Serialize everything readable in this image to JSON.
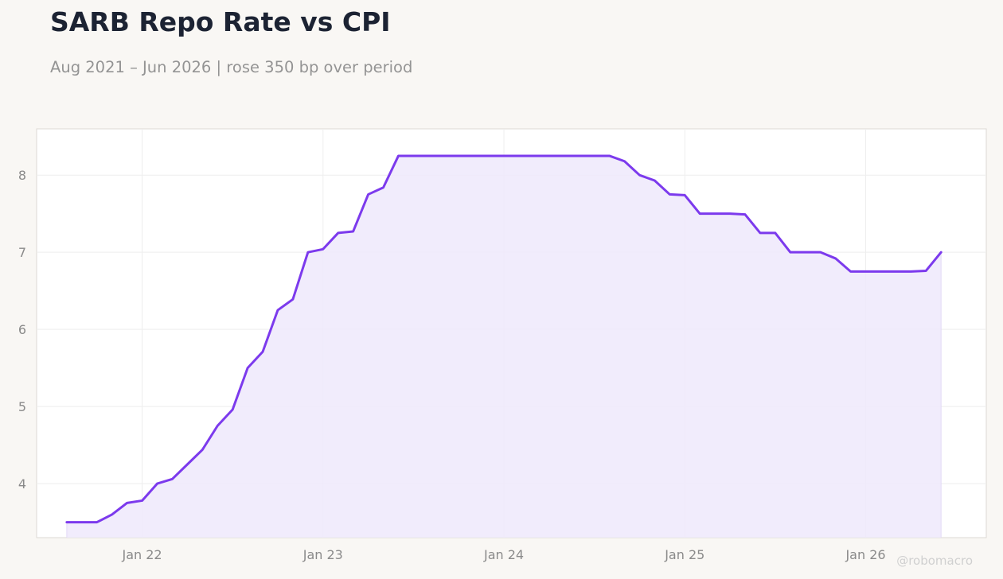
{
  "title": "SARB Repo Rate vs CPI",
  "subtitle": "Aug 2021 – Jun 2026 | rose 350 bp over period",
  "watermark": "@robomacro",
  "colors": {
    "line": "#7c3aed",
    "fill": "#efe9fb",
    "background": "#f9f7f4",
    "plot_background": "#ffffff",
    "grid": "#eeeeee"
  },
  "chart_data": {
    "type": "area",
    "title": "SARB Repo Rate vs CPI",
    "subtitle": "Aug 2021 – Jun 2026 | rose 350 bp over period",
    "xlabel": "",
    "ylabel": "",
    "ylim": [
      3.3,
      8.6
    ],
    "xlim": [
      "2021-06",
      "2026-09"
    ],
    "grid": true,
    "x_ticks": [
      {
        "date": "2022-01",
        "label": "Jan 22"
      },
      {
        "date": "2023-01",
        "label": "Jan 23"
      },
      {
        "date": "2024-01",
        "label": "Jan 24"
      },
      {
        "date": "2025-01",
        "label": "Jan 25"
      },
      {
        "date": "2026-01",
        "label": "Jan 26"
      }
    ],
    "y_ticks": [
      4,
      5,
      6,
      7,
      8
    ],
    "series": [
      {
        "x": [
          "2021-08",
          "2021-09",
          "2021-10",
          "2021-11",
          "2021-12",
          "2022-01",
          "2022-02",
          "2022-03",
          "2022-04",
          "2022-05",
          "2022-06",
          "2022-07",
          "2022-08",
          "2022-09",
          "2022-10",
          "2022-11",
          "2022-12",
          "2023-01",
          "2023-02",
          "2023-03",
          "2023-04",
          "2023-05",
          "2023-06",
          "2023-07",
          "2023-08",
          "2023-09",
          "2023-10",
          "2023-11",
          "2023-12",
          "2024-01",
          "2024-02",
          "2024-03",
          "2024-04",
          "2024-05",
          "2024-06",
          "2024-07",
          "2024-08",
          "2024-09",
          "2024-10",
          "2024-11",
          "2024-12",
          "2025-01",
          "2025-02",
          "2025-03",
          "2025-04",
          "2025-05",
          "2025-06",
          "2025-07",
          "2025-08",
          "2025-09",
          "2025-10",
          "2025-11",
          "2025-12",
          "2026-01",
          "2026-02",
          "2026-03",
          "2026-04",
          "2026-05",
          "2026-06"
        ],
        "values": [
          3.5,
          3.5,
          3.5,
          3.6,
          3.75,
          3.78,
          4.0,
          4.06,
          4.25,
          4.44,
          4.75,
          4.96,
          5.5,
          5.71,
          6.25,
          6.39,
          7.0,
          7.04,
          7.25,
          7.27,
          7.75,
          7.84,
          8.25,
          8.25,
          8.25,
          8.25,
          8.25,
          8.25,
          8.25,
          8.25,
          8.25,
          8.25,
          8.25,
          8.25,
          8.25,
          8.25,
          8.25,
          8.18,
          8.0,
          7.93,
          7.75,
          7.74,
          7.5,
          7.5,
          7.5,
          7.49,
          7.25,
          7.25,
          7.0,
          7.0,
          7.0,
          6.92,
          6.75,
          6.75,
          6.75,
          6.75,
          6.75,
          6.76,
          7.0
        ]
      }
    ]
  }
}
